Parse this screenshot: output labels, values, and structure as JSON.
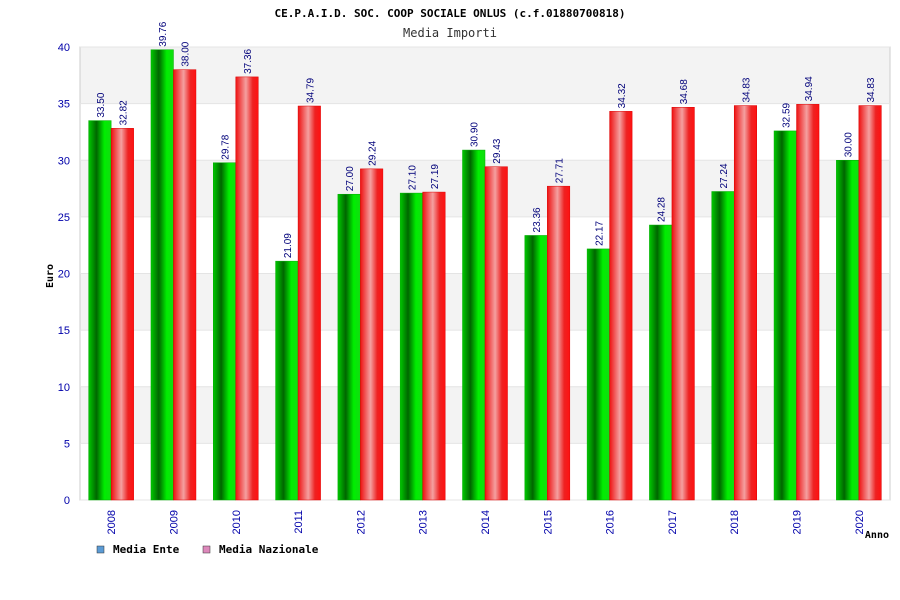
{
  "chart_data": {
    "type": "bar",
    "title": "CE.P.A.I.D. SOC. COOP SOCIALE ONLUS (c.f.01880700818)",
    "subtitle": "Media Importi",
    "xlabel": "Anno",
    "ylabel": "Euro",
    "ylim": [
      0,
      40
    ],
    "yticks": [
      "0",
      "5",
      "10",
      "15",
      "20",
      "25",
      "30",
      "35",
      "40"
    ],
    "grid": true,
    "legend_position": "bottom-left",
    "categories": [
      "2008",
      "2009",
      "2010",
      "2011",
      "2012",
      "2013",
      "2014",
      "2015",
      "2016",
      "2017",
      "2018",
      "2019",
      "2020"
    ],
    "series": [
      {
        "name": "Media Ente",
        "color": "#00cc00",
        "legend_color": "#5b9bd5",
        "values": [
          33.5,
          39.76,
          29.78,
          21.09,
          27.0,
          27.1,
          30.9,
          23.36,
          22.17,
          24.28,
          27.24,
          32.59,
          30.0
        ],
        "labels": [
          "33.50",
          "39.76",
          "29.78",
          "21.09",
          "27.00",
          "27.10",
          "30.90",
          "23.36",
          "22.17",
          "24.28",
          "27.24",
          "32.59",
          "30.00"
        ]
      },
      {
        "name": "Media Nazionale",
        "color": "#ee1111",
        "legend_color": "#dd88bb",
        "values": [
          32.82,
          38.0,
          37.36,
          34.79,
          29.24,
          27.19,
          29.43,
          27.71,
          34.32,
          34.68,
          34.83,
          34.94,
          34.83
        ],
        "labels": [
          "32.82",
          "38.00",
          "37.36",
          "34.79",
          "29.24",
          "27.19",
          "29.43",
          "27.71",
          "34.32",
          "34.68",
          "34.83",
          "34.94",
          "34.83"
        ]
      }
    ]
  }
}
